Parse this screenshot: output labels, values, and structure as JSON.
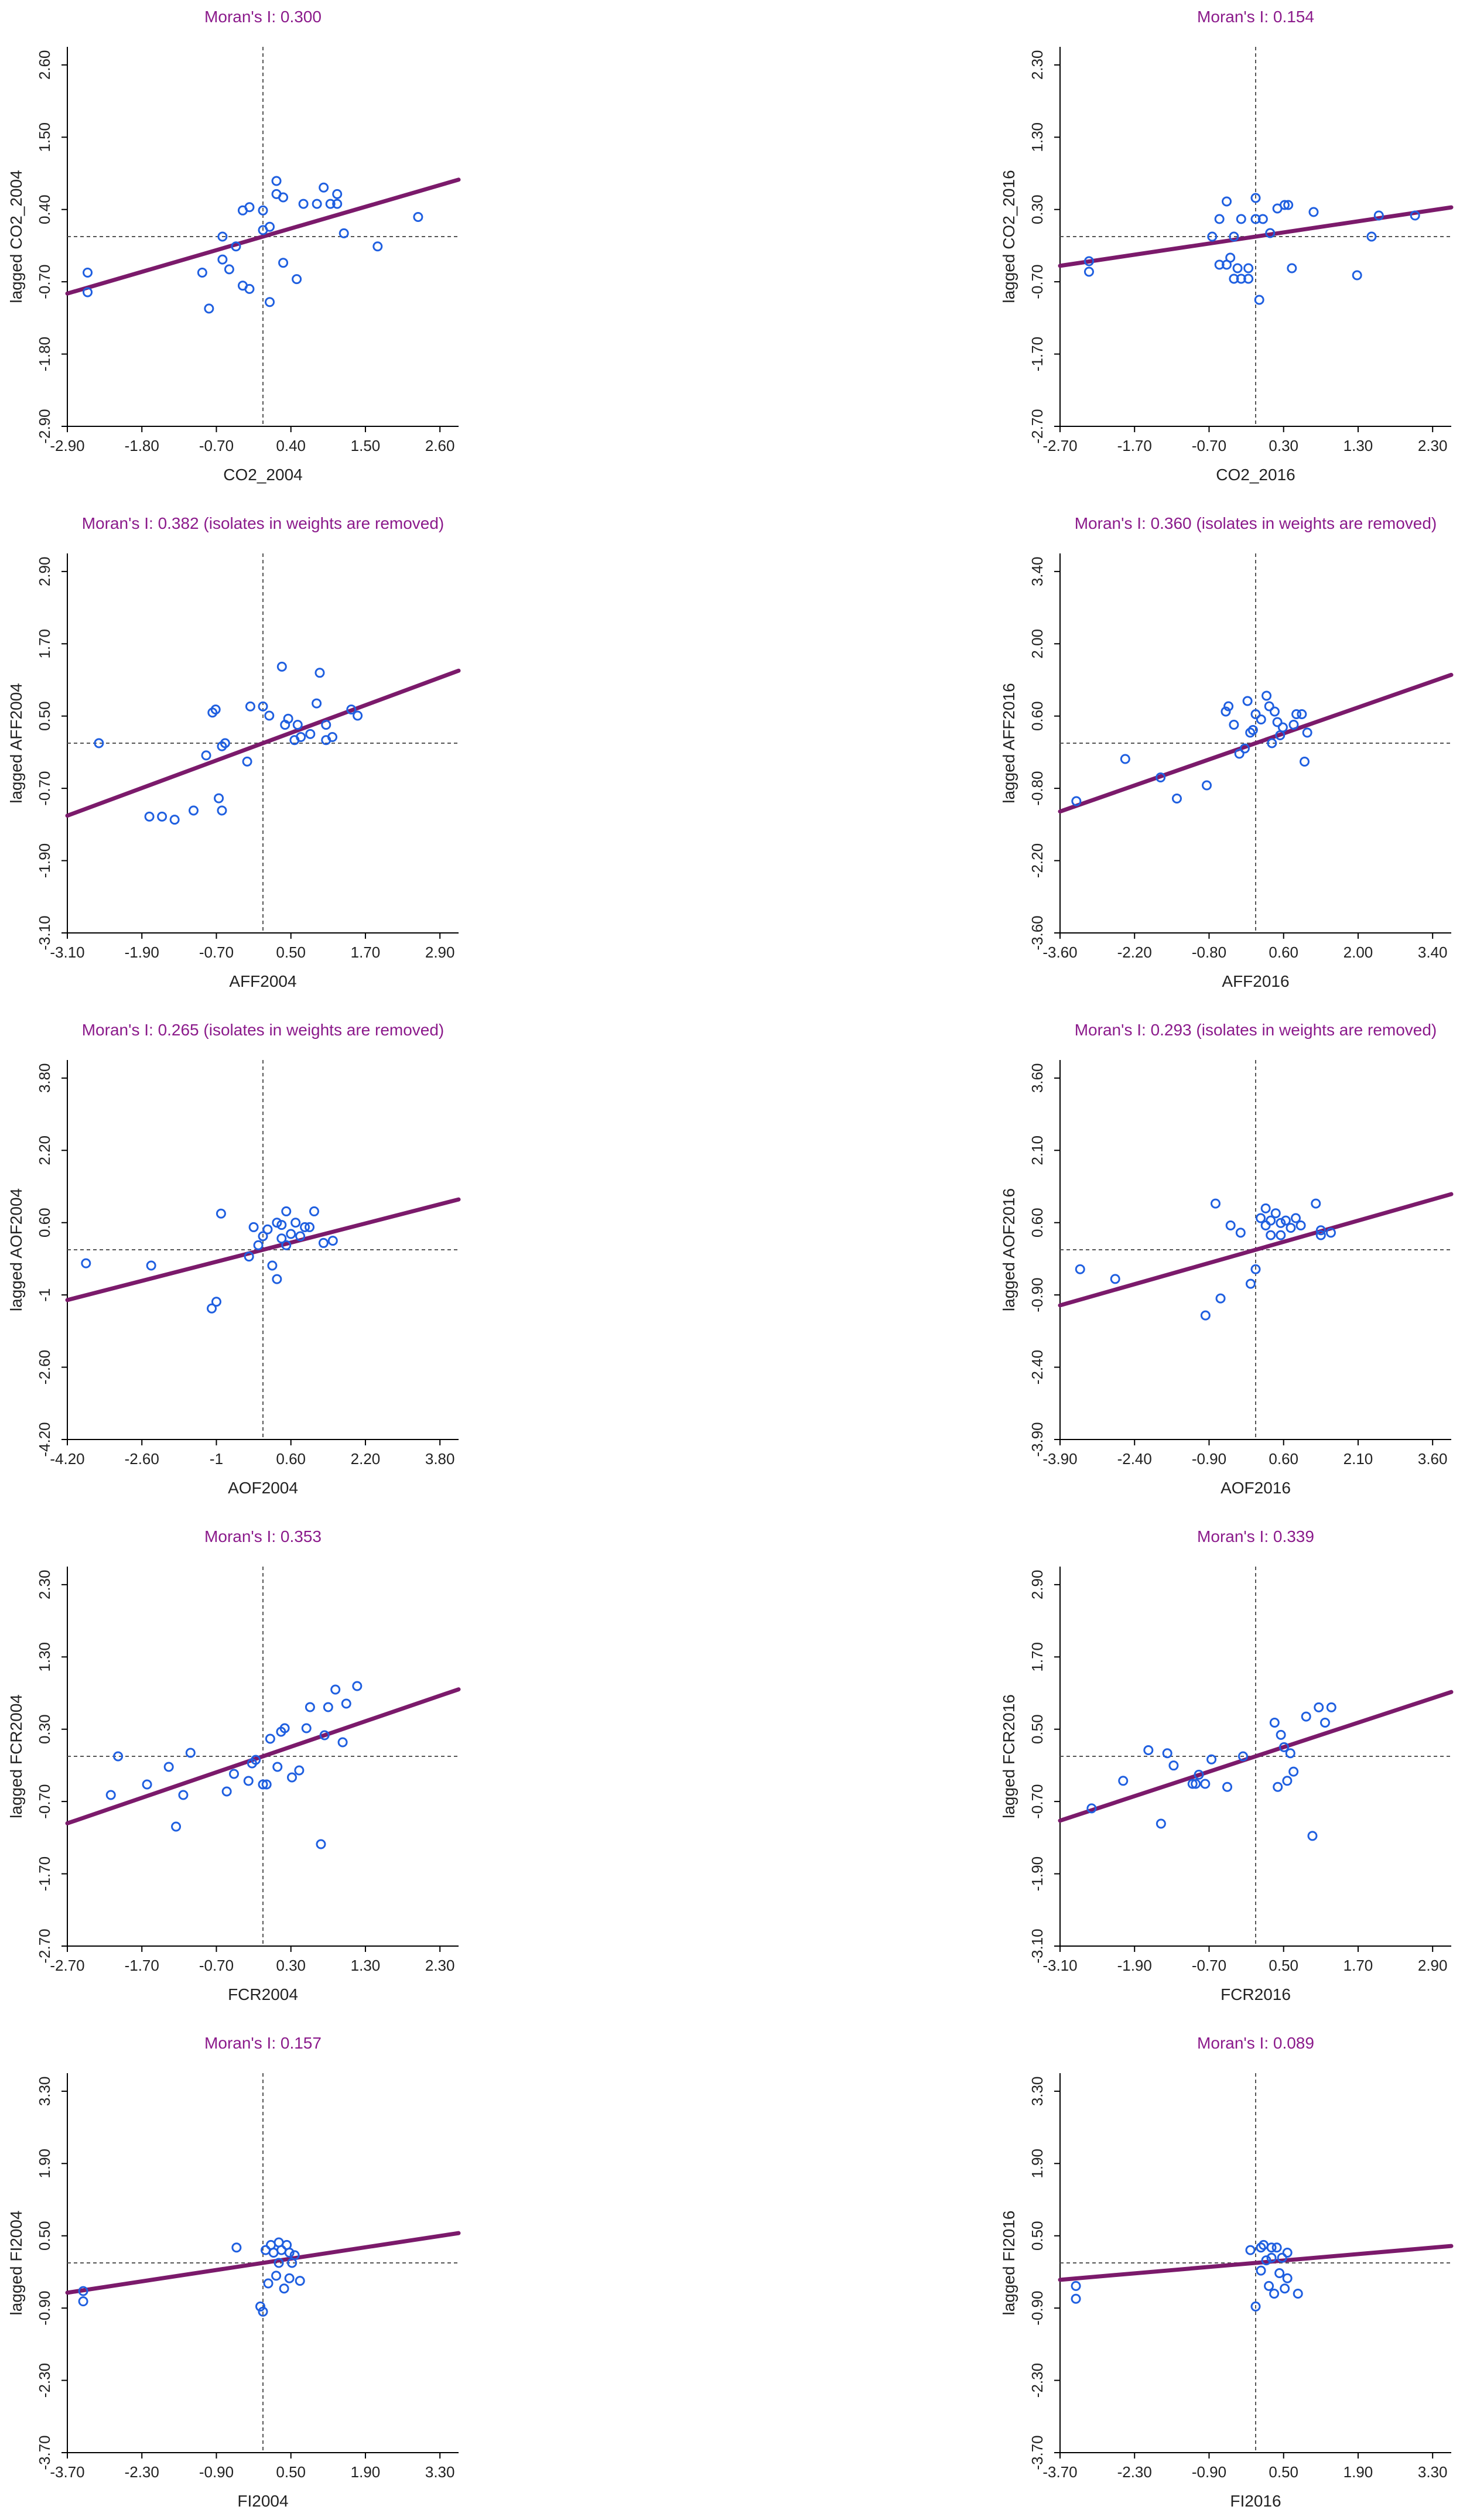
{
  "chart_data": [
    {
      "type": "scatter",
      "title": "Moran's I: 0.300",
      "xlabel": "CO2_2004",
      "ylabel": "lagged CO2_2004",
      "xticks": [
        "-2.90",
        "-1.80",
        "-0.70",
        "0.40",
        "1.50",
        "2.60"
      ],
      "yticks": [
        "-2.90",
        "-1.80",
        "-0.70",
        "0.40",
        "1.50",
        "2.60"
      ],
      "xlim": [
        -2.9,
        2.9
      ],
      "ylim": [
        -2.9,
        2.9
      ],
      "fit": {
        "slope": 0.3,
        "intercept": 0
      },
      "x": [
        -2.6,
        -2.6,
        -0.9,
        -0.8,
        -0.6,
        -0.6,
        -0.5,
        -0.4,
        -0.3,
        -0.3,
        -0.2,
        -0.2,
        0.0,
        0.0,
        0.1,
        0.1,
        0.2,
        0.2,
        0.3,
        0.3,
        0.5,
        0.6,
        0.8,
        0.9,
        1.0,
        1.1,
        1.1,
        1.2,
        1.7,
        2.3
      ],
      "y": [
        -0.55,
        -0.85,
        -0.55,
        -1.1,
        -0.35,
        0.0,
        -0.5,
        -0.15,
        0.4,
        -0.75,
        0.45,
        -0.8,
        0.1,
        0.4,
        -1.0,
        0.15,
        0.65,
        0.85,
        -0.4,
        0.6,
        -0.65,
        0.5,
        0.5,
        0.75,
        0.5,
        0.65,
        0.5,
        0.05,
        -0.15,
        0.3
      ]
    },
    {
      "type": "scatter",
      "title": "Moran's I: 0.154",
      "xlabel": "CO2_2016",
      "ylabel": "lagged CO2_2016",
      "xticks": [
        "-2.70",
        "-1.70",
        "-0.70",
        "0.30",
        "1.30",
        "2.30"
      ],
      "yticks": [
        "-2.70",
        "-1.70",
        "-0.70",
        "0.30",
        "1.30",
        "2.30"
      ],
      "xlim": [
        -2.7,
        2.7
      ],
      "ylim": [
        -2.7,
        2.7
      ],
      "fit": {
        "slope": 0.154,
        "intercept": 0
      },
      "x": [
        -2.3,
        -2.3,
        -0.6,
        -0.5,
        -0.5,
        -0.4,
        -0.4,
        -0.35,
        -0.3,
        -0.3,
        -0.25,
        -0.2,
        -0.2,
        -0.1,
        -0.1,
        0.0,
        0.0,
        0.05,
        0.1,
        0.2,
        0.3,
        0.4,
        0.45,
        0.5,
        0.8,
        1.4,
        1.6,
        1.7,
        2.2
      ],
      "y": [
        -0.35,
        -0.5,
        0.0,
        -0.4,
        0.25,
        -0.4,
        0.5,
        -0.3,
        0.0,
        -0.6,
        -0.45,
        -0.6,
        0.25,
        -0.6,
        -0.45,
        0.55,
        0.25,
        -0.9,
        0.25,
        0.05,
        0.4,
        0.45,
        0.45,
        -0.45,
        0.35,
        -0.55,
        0.0,
        0.3,
        0.3
      ]
    },
    {
      "type": "scatter",
      "title": "Moran's I: 0.382 (isolates in weights are removed)",
      "xlabel": "AFF2004",
      "ylabel": "lagged AFF2004",
      "xticks": [
        "-3.10",
        "-1.90",
        "-0.70",
        "0.50",
        "1.70",
        "2.90"
      ],
      "yticks": [
        "-3.10",
        "-1.90",
        "-0.70",
        "0.50",
        "1.70",
        "2.90"
      ],
      "xlim": [
        -3.1,
        3.1
      ],
      "ylim": [
        -3.1,
        3.1
      ],
      "fit": {
        "slope": 0.382,
        "intercept": 0
      },
      "x": [
        -2.6,
        -1.8,
        -1.6,
        -1.4,
        -1.1,
        -0.9,
        -0.8,
        -0.75,
        -0.7,
        -0.65,
        -0.65,
        -0.6,
        -0.25,
        -0.2,
        0.0,
        0.1,
        0.3,
        0.35,
        0.4,
        0.5,
        0.55,
        0.6,
        0.75,
        0.85,
        0.9,
        1.0,
        1.0,
        1.1,
        1.4,
        1.5
      ],
      "y": [
        0.0,
        -1.2,
        -1.2,
        -1.25,
        -1.1,
        -0.2,
        0.5,
        0.55,
        -0.9,
        -0.05,
        -1.1,
        0.0,
        -0.3,
        0.6,
        0.6,
        0.45,
        1.25,
        0.3,
        0.4,
        0.05,
        0.3,
        0.1,
        0.15,
        0.65,
        1.15,
        0.3,
        0.05,
        0.1,
        0.55,
        0.45
      ]
    },
    {
      "type": "scatter",
      "title": "Moran's I: 0.360 (isolates in weights are removed)",
      "xlabel": "AFF2016",
      "ylabel": "lagged AFF2016",
      "xticks": [
        "-3.60",
        "-2.20",
        "-0.80",
        "0.60",
        "2.00",
        "3.40"
      ],
      "yticks": [
        "-3.60",
        "-2.20",
        "-0.80",
        "0.60",
        "2.00",
        "3.40"
      ],
      "xlim": [
        -3.6,
        3.6
      ],
      "ylim": [
        -3.6,
        3.6
      ],
      "fit": {
        "slope": 0.36,
        "intercept": 0
      },
      "x": [
        -3.3,
        -2.4,
        -1.75,
        -1.45,
        -0.9,
        -0.55,
        -0.5,
        -0.4,
        -0.3,
        -0.2,
        -0.15,
        -0.1,
        -0.05,
        0.0,
        0.1,
        0.2,
        0.25,
        0.3,
        0.35,
        0.4,
        0.45,
        0.5,
        0.7,
        0.75,
        0.85,
        0.9,
        0.95
      ],
      "y": [
        -1.1,
        -0.3,
        -0.65,
        -1.05,
        -0.8,
        0.6,
        0.7,
        0.35,
        -0.2,
        -0.1,
        0.8,
        0.2,
        0.25,
        0.55,
        0.45,
        0.9,
        0.7,
        0.0,
        0.6,
        0.4,
        0.15,
        0.3,
        0.35,
        0.55,
        0.55,
        -0.35,
        0.2
      ]
    },
    {
      "type": "scatter",
      "title": "Moran's I: 0.265 (isolates in weights are removed)",
      "xlabel": "AOF2004",
      "ylabel": "lagged AOF2004",
      "xticks": [
        "-4.20",
        "-2.60",
        "-1",
        "0.60",
        "2.20",
        "3.80"
      ],
      "yticks": [
        "-4.20",
        "-2.60",
        "-1",
        "0.60",
        "2.20",
        "3.80"
      ],
      "xlim": [
        -4.2,
        4.2
      ],
      "ylim": [
        -4.2,
        4.2
      ],
      "fit": {
        "slope": 0.265,
        "intercept": 0
      },
      "x": [
        -3.8,
        -2.4,
        -1.1,
        -1.0,
        -0.9,
        -0.3,
        -0.2,
        -0.1,
        0.0,
        0.1,
        0.2,
        0.3,
        0.3,
        0.4,
        0.4,
        0.5,
        0.5,
        0.6,
        0.7,
        0.8,
        0.9,
        1.0,
        1.1,
        1.3,
        1.5
      ],
      "y": [
        -0.3,
        -0.35,
        -1.3,
        -1.15,
        0.8,
        -0.15,
        0.5,
        0.1,
        0.3,
        0.45,
        -0.35,
        0.6,
        -0.65,
        0.25,
        0.55,
        0.85,
        0.1,
        0.35,
        0.6,
        0.3,
        0.5,
        0.5,
        0.85,
        0.15,
        0.2
      ]
    },
    {
      "type": "scatter",
      "title": "Moran's I: 0.293 (isolates in weights are removed)",
      "xlabel": "AOF2016",
      "ylabel": "lagged AOF2016",
      "xticks": [
        "-3.90",
        "-2.40",
        "-0.90",
        "0.60",
        "2.10",
        "3.60"
      ],
      "yticks": [
        "-3.90",
        "-2.40",
        "-0.90",
        "0.60",
        "2.10",
        "3.60"
      ],
      "xlim": [
        -3.9,
        3.9
      ],
      "ylim": [
        -3.9,
        3.9
      ],
      "fit": {
        "slope": 0.293,
        "intercept": 0
      },
      "x": [
        -3.5,
        -2.8,
        -1.0,
        -0.8,
        -0.7,
        -0.5,
        -0.3,
        -0.1,
        0.0,
        0.1,
        0.2,
        0.2,
        0.3,
        0.3,
        0.4,
        0.5,
        0.5,
        0.6,
        0.7,
        0.8,
        0.9,
        1.2,
        1.3,
        1.3,
        1.5
      ],
      "y": [
        -0.4,
        -0.6,
        -1.35,
        0.95,
        -1.0,
        0.5,
        0.35,
        -0.7,
        -0.4,
        0.65,
        0.85,
        0.5,
        0.6,
        0.3,
        0.75,
        0.55,
        0.3,
        0.6,
        0.45,
        0.65,
        0.5,
        0.95,
        0.4,
        0.3,
        0.35
      ]
    },
    {
      "type": "scatter",
      "title": "Moran's I: 0.353",
      "xlabel": "FCR2004",
      "ylabel": "lagged FCR2004",
      "xticks": [
        "-2.70",
        "-1.70",
        "-0.70",
        "0.30",
        "1.30",
        "2.30"
      ],
      "yticks": [
        "-2.70",
        "-1.70",
        "-0.70",
        "0.30",
        "1.30",
        "2.30"
      ],
      "xlim": [
        -2.7,
        2.7
      ],
      "ylim": [
        -2.7,
        2.7
      ],
      "fit": {
        "slope": 0.353,
        "intercept": 0
      },
      "x": [
        -2.1,
        -2.0,
        -1.6,
        -1.3,
        -1.2,
        -1.1,
        -1.0,
        -0.5,
        -0.4,
        -0.2,
        -0.15,
        -0.1,
        0.0,
        0.05,
        0.1,
        0.2,
        0.25,
        0.3,
        0.4,
        0.5,
        0.6,
        0.65,
        0.8,
        0.85,
        0.9,
        1.0,
        1.1,
        1.15,
        1.3
      ],
      "y": [
        -0.55,
        0.0,
        -0.4,
        -0.15,
        -1.0,
        -0.55,
        0.05,
        -0.5,
        -0.25,
        -0.35,
        -0.1,
        -0.05,
        -0.4,
        -0.4,
        0.25,
        -0.15,
        0.35,
        0.4,
        -0.3,
        -0.2,
        0.4,
        0.7,
        -1.25,
        0.3,
        0.7,
        0.95,
        0.2,
        0.75,
        1.0
      ]
    },
    {
      "type": "scatter",
      "title": "Moran's I: 0.339",
      "xlabel": "FCR2016",
      "ylabel": "lagged FCR2016",
      "xticks": [
        "-3.10",
        "-1.90",
        "-0.70",
        "0.50",
        "1.70",
        "2.90"
      ],
      "yticks": [
        "-3.10",
        "-1.90",
        "-0.70",
        "0.50",
        "1.70",
        "2.90"
      ],
      "xlim": [
        -3.1,
        3.1
      ],
      "ylim": [
        -3.1,
        3.1
      ],
      "fit": {
        "slope": 0.339,
        "intercept": 0
      },
      "x": [
        -2.6,
        -2.1,
        -1.7,
        -1.5,
        -1.4,
        -1.3,
        -1.0,
        -0.95,
        -0.9,
        -0.8,
        -0.7,
        -0.45,
        -0.2,
        0.3,
        0.35,
        0.4,
        0.45,
        0.5,
        0.55,
        0.6,
        0.8,
        0.9,
        1.0,
        1.1,
        1.2
      ],
      "y": [
        -0.85,
        -0.4,
        0.1,
        -1.1,
        0.05,
        -0.15,
        -0.45,
        -0.45,
        -0.3,
        -0.45,
        -0.05,
        -0.5,
        0.0,
        0.55,
        -0.5,
        0.35,
        0.15,
        -0.4,
        0.05,
        -0.25,
        0.65,
        -1.3,
        0.8,
        0.55,
        0.8
      ]
    },
    {
      "type": "scatter",
      "title": "Moran's I: 0.157",
      "xlabel": "FI2004",
      "ylabel": "lagged FI2004",
      "xticks": [
        "-3.70",
        "-2.30",
        "-0.90",
        "0.50",
        "1.90",
        "3.30"
      ],
      "yticks": [
        "-3.70",
        "-2.30",
        "-0.90",
        "0.50",
        "1.90",
        "3.30"
      ],
      "xlim": [
        -3.7,
        3.7
      ],
      "ylim": [
        -3.7,
        3.7
      ],
      "fit": {
        "slope": 0.157,
        "intercept": 0
      },
      "x": [
        -3.4,
        -3.4,
        -0.5,
        -0.05,
        0.0,
        0.05,
        0.1,
        0.15,
        0.2,
        0.25,
        0.3,
        0.3,
        0.35,
        0.4,
        0.45,
        0.5,
        0.5,
        0.55,
        0.6,
        0.7
      ],
      "y": [
        -0.55,
        -0.75,
        0.3,
        -0.85,
        -0.95,
        0.25,
        -0.4,
        0.35,
        0.2,
        -0.25,
        0.4,
        0.0,
        0.25,
        -0.5,
        0.35,
        0.2,
        -0.3,
        0.0,
        0.15,
        -0.35
      ]
    },
    {
      "type": "scatter",
      "title": "Moran's I: 0.089",
      "xlabel": "FI2016",
      "ylabel": "lagged FI2016",
      "xticks": [
        "-3.70",
        "-2.30",
        "-0.90",
        "0.50",
        "1.90",
        "3.30"
      ],
      "yticks": [
        "-3.70",
        "-2.30",
        "-0.90",
        "0.50",
        "1.90",
        "3.30"
      ],
      "xlim": [
        -3.7,
        3.7
      ],
      "ylim": [
        -3.7,
        3.7
      ],
      "fit": {
        "slope": 0.089,
        "intercept": 0
      },
      "x": [
        -3.4,
        -3.4,
        -0.1,
        0.0,
        0.1,
        0.1,
        0.15,
        0.2,
        0.25,
        0.3,
        0.3,
        0.35,
        0.4,
        0.45,
        0.5,
        0.55,
        0.6,
        0.6,
        0.8
      ],
      "y": [
        -0.45,
        -0.7,
        0.25,
        -0.85,
        0.3,
        -0.15,
        0.35,
        0.05,
        -0.45,
        0.3,
        0.1,
        -0.6,
        0.3,
        -0.2,
        0.1,
        -0.5,
        0.2,
        -0.3,
        -0.6
      ]
    }
  ]
}
